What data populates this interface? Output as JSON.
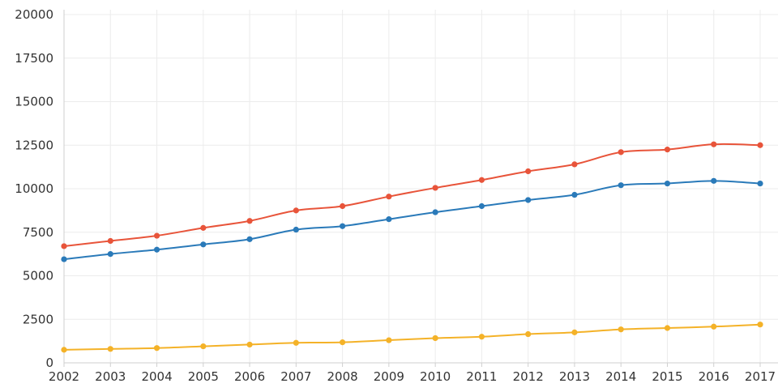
{
  "chart_data": {
    "type": "line",
    "x": [
      "2002",
      "2003",
      "2004",
      "2005",
      "2006",
      "2007",
      "2008",
      "2009",
      "2010",
      "2011",
      "2012",
      "2013",
      "2014",
      "2015",
      "2016",
      "2017"
    ],
    "ylim": [
      0,
      20000
    ],
    "yticks": [
      "0",
      "2500",
      "5000",
      "7500",
      "10000",
      "12500",
      "15000",
      "17500",
      "20000"
    ],
    "grid": true,
    "series": [
      {
        "color": "#e8543a",
        "values": [
          6700,
          7000,
          7300,
          7750,
          8150,
          8750,
          9000,
          9550,
          10050,
          10500,
          11000,
          11400,
          12100,
          12250,
          12550,
          12500
        ]
      },
      {
        "color": "#2a7ab9",
        "values": [
          5950,
          6250,
          6500,
          6800,
          7100,
          7650,
          7850,
          8250,
          8650,
          9000,
          9350,
          9650,
          10200,
          10300,
          10450,
          10300
        ]
      },
      {
        "color": "#f4b228",
        "values": [
          750,
          800,
          850,
          950,
          1050,
          1150,
          1180,
          1300,
          1420,
          1500,
          1650,
          1750,
          1920,
          2000,
          2080,
          2200
        ]
      }
    ]
  }
}
